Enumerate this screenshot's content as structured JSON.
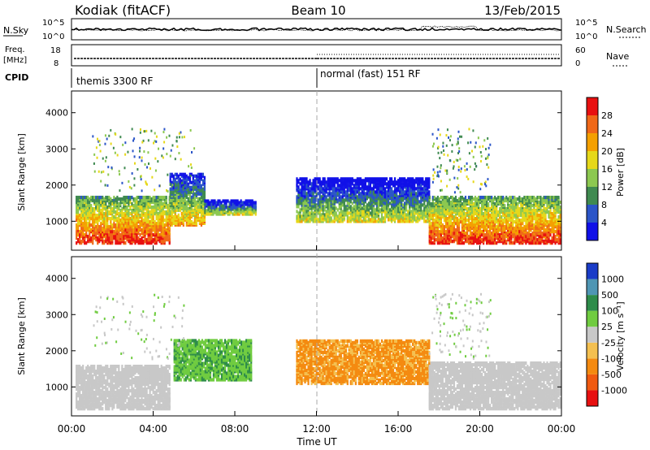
{
  "header": {
    "site": "Kodiak (fitACF)",
    "beam": "Beam 10",
    "date": "13/Feb/2015"
  },
  "strip1": {
    "left_label": "N.Sky",
    "left_tick_top": "10^5",
    "left_tick_bottom": "10^0",
    "right_tick_top": "10^5",
    "right_tick_bottom": "10^0",
    "right_label": "N.Search"
  },
  "strip2": {
    "left_label_top": "Freq.",
    "left_label_bottom": "[MHz]",
    "left_tick_top": "18",
    "left_tick_bottom": "8",
    "right_tick_top": "60",
    "right_tick_bottom": "0",
    "right_label": "Nave"
  },
  "cpid": {
    "label": "CPID",
    "mode1": "themis 3300 RF",
    "mode2": "normal (fast) 151 RF"
  },
  "x_axis": {
    "label": "Time UT",
    "ticks": [
      "00:00",
      "04:00",
      "08:00",
      "12:00",
      "16:00",
      "20:00",
      "00:00"
    ]
  },
  "power_panel": {
    "ylabel": "Slant Range [km]",
    "yticks": [
      "1000",
      "2000",
      "3000",
      "4000"
    ],
    "colorbar_label": "Power [dB]",
    "colorbar_ticks": [
      "4",
      "8",
      "12",
      "16",
      "20",
      "24",
      "28"
    ],
    "colors": [
      "#1010e8",
      "#2b55c8",
      "#3f8a50",
      "#8cc850",
      "#e6d81a",
      "#f4a000",
      "#f06818",
      "#e81010"
    ]
  },
  "velocity_panel": {
    "ylabel": "Slant Range [km]",
    "yticks": [
      "1000",
      "2000",
      "3000",
      "4000"
    ],
    "colorbar_label": "Velocity [m s⁻¹]",
    "colorbar_ticks": [
      "1000",
      "500",
      "100",
      "25",
      "-25",
      "-100",
      "-500",
      "-1000"
    ],
    "colors": [
      "#1a3cc8",
      "#4f96b4",
      "#2e8c4a",
      "#70cc40",
      "#c8c8c8",
      "#f4c050",
      "#f48a10",
      "#f05a10",
      "#e81010"
    ]
  },
  "chart_data": {
    "type": "heatmap",
    "title": "Kodiak (fitACF) Beam 10 13/Feb/2015",
    "xlabel": "Time UT",
    "ylabel": "Slant Range [km]",
    "xlim": [
      0,
      24
    ],
    "ylim": [
      200,
      4600
    ],
    "power_bands": [
      {
        "t0": 0.2,
        "t1": 4.8,
        "r0": 400,
        "r1": 1700,
        "level": 7
      },
      {
        "t0": 4.8,
        "t1": 6.5,
        "r0": 900,
        "r1": 2300,
        "level": 5
      },
      {
        "t0": 6.5,
        "t1": 9.0,
        "r0": 1200,
        "r1": 1600,
        "level": 4
      },
      {
        "t0": 11.0,
        "t1": 17.5,
        "r0": 1000,
        "r1": 2200,
        "level": 4
      },
      {
        "t0": 17.5,
        "t1": 23.9,
        "r0": 400,
        "r1": 1700,
        "level": 7
      }
    ],
    "velocity_bands": [
      {
        "t0": 0.2,
        "t1": 4.8,
        "r0": 400,
        "r1": 1600,
        "class": "ground"
      },
      {
        "t0": 5.0,
        "t1": 8.8,
        "r0": 1200,
        "r1": 2300,
        "class": "100"
      },
      {
        "t0": 11.0,
        "t1": 17.5,
        "r0": 1100,
        "r1": 2300,
        "class": "-100"
      },
      {
        "t0": 17.5,
        "t1": 23.9,
        "r0": 400,
        "r1": 1700,
        "class": "ground"
      }
    ]
  }
}
